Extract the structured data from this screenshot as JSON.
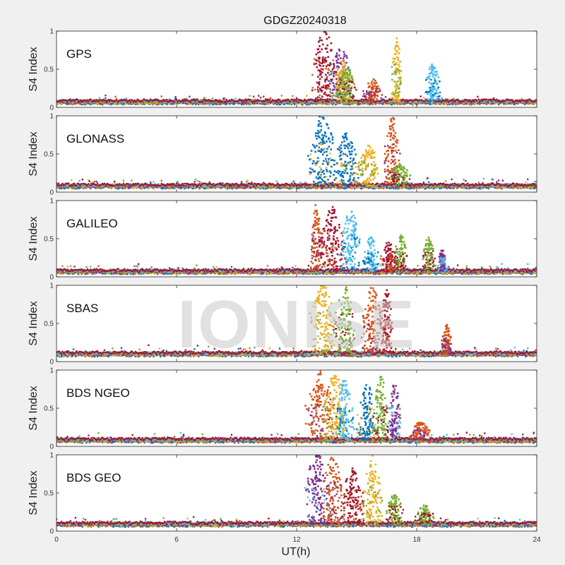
{
  "chart_data": {
    "type": "scatter",
    "title": "GDGZ20240318",
    "xlabel": "UT(h)",
    "ylabel": "S4 Index",
    "xlim": [
      0,
      24
    ],
    "ylim": [
      0,
      1
    ],
    "xticks": [
      0,
      6,
      12,
      18,
      24
    ],
    "xtick_labels": [
      "0",
      "6",
      "12",
      "18",
      "24"
    ],
    "yticks": [
      0,
      0.5,
      1
    ],
    "ytick_labels": [
      "0",
      "0.5",
      "1"
    ],
    "watermark": "IONISE",
    "colors": [
      "#0072BD",
      "#D95319",
      "#EDB120",
      "#7E2F8E",
      "#77AC30",
      "#4DBEEE",
      "#A2142F"
    ],
    "panels": [
      {
        "name": "GPS",
        "baseline": 0.07,
        "bursts": [
          {
            "center": 13.4,
            "width": 0.8,
            "peak": 0.95,
            "color": 6
          },
          {
            "center": 14.2,
            "width": 0.7,
            "peak": 0.75,
            "color": 3
          },
          {
            "center": 14.3,
            "width": 0.6,
            "peak": 0.55,
            "color": 2
          },
          {
            "center": 14.5,
            "width": 0.6,
            "peak": 0.45,
            "color": 4
          },
          {
            "center": 15.8,
            "width": 0.6,
            "peak": 0.3,
            "color": 1
          },
          {
            "center": 17.0,
            "width": 0.3,
            "peak": 0.9,
            "color": 2
          },
          {
            "center": 18.8,
            "width": 0.5,
            "peak": 0.5,
            "color": 5
          }
        ]
      },
      {
        "name": "GLONASS",
        "baseline": 0.08,
        "bursts": [
          {
            "center": 13.3,
            "width": 0.9,
            "peak": 0.95,
            "color": 0
          },
          {
            "center": 14.5,
            "width": 0.8,
            "peak": 0.7,
            "color": 0
          },
          {
            "center": 15.6,
            "width": 0.7,
            "peak": 0.55,
            "color": 2
          },
          {
            "center": 16.8,
            "width": 0.5,
            "peak": 0.95,
            "color": 1
          },
          {
            "center": 17.2,
            "width": 0.6,
            "peak": 0.3,
            "color": 4
          }
        ]
      },
      {
        "name": "GALILEO",
        "baseline": 0.07,
        "bursts": [
          {
            "center": 13.0,
            "width": 0.4,
            "peak": 0.9,
            "color": 1
          },
          {
            "center": 13.8,
            "width": 0.8,
            "peak": 0.85,
            "color": 6
          },
          {
            "center": 14.7,
            "width": 0.6,
            "peak": 0.85,
            "color": 5
          },
          {
            "center": 15.7,
            "width": 0.5,
            "peak": 0.45,
            "color": 5
          },
          {
            "center": 16.6,
            "width": 0.5,
            "peak": 0.4,
            "color": 6
          },
          {
            "center": 17.2,
            "width": 0.4,
            "peak": 0.5,
            "color": 4
          },
          {
            "center": 18.6,
            "width": 0.4,
            "peak": 0.45,
            "color": 4
          },
          {
            "center": 19.3,
            "width": 0.3,
            "peak": 0.3,
            "color": 3
          }
        ]
      },
      {
        "name": "SBAS",
        "baseline": 0.1,
        "bursts": [
          {
            "center": 13.3,
            "width": 0.8,
            "peak": 0.95,
            "color": 2
          },
          {
            "center": 14.4,
            "width": 0.7,
            "peak": 0.9,
            "color": 4
          },
          {
            "center": 15.8,
            "width": 0.7,
            "peak": 0.9,
            "color": 1
          },
          {
            "center": 16.5,
            "width": 0.4,
            "peak": 0.85,
            "color": 6
          },
          {
            "center": 19.5,
            "width": 0.3,
            "peak": 0.4,
            "color": 1
          }
        ]
      },
      {
        "name": "BDS NGEO",
        "baseline": 0.08,
        "bursts": [
          {
            "center": 13.2,
            "width": 0.9,
            "peak": 0.95,
            "color": 1
          },
          {
            "center": 13.9,
            "width": 0.7,
            "peak": 0.9,
            "color": 2
          },
          {
            "center": 14.4,
            "width": 0.6,
            "peak": 0.8,
            "color": 5
          },
          {
            "center": 15.5,
            "width": 0.6,
            "peak": 0.75,
            "color": 0
          },
          {
            "center": 16.2,
            "width": 0.5,
            "peak": 0.85,
            "color": 4
          },
          {
            "center": 16.9,
            "width": 0.4,
            "peak": 0.75,
            "color": 3
          },
          {
            "center": 18.2,
            "width": 0.6,
            "peak": 0.25,
            "color": 1
          }
        ]
      },
      {
        "name": "BDS GEO",
        "baseline": 0.09,
        "bursts": [
          {
            "center": 13.0,
            "width": 0.8,
            "peak": 0.95,
            "color": 3
          },
          {
            "center": 13.8,
            "width": 0.7,
            "peak": 0.9,
            "color": 1
          },
          {
            "center": 14.8,
            "width": 0.7,
            "peak": 0.75,
            "color": 6
          },
          {
            "center": 15.8,
            "width": 0.6,
            "peak": 0.9,
            "color": 2
          },
          {
            "center": 16.9,
            "width": 0.6,
            "peak": 0.4,
            "color": 4
          },
          {
            "center": 18.4,
            "width": 0.6,
            "peak": 0.25,
            "color": 4
          }
        ]
      }
    ]
  }
}
